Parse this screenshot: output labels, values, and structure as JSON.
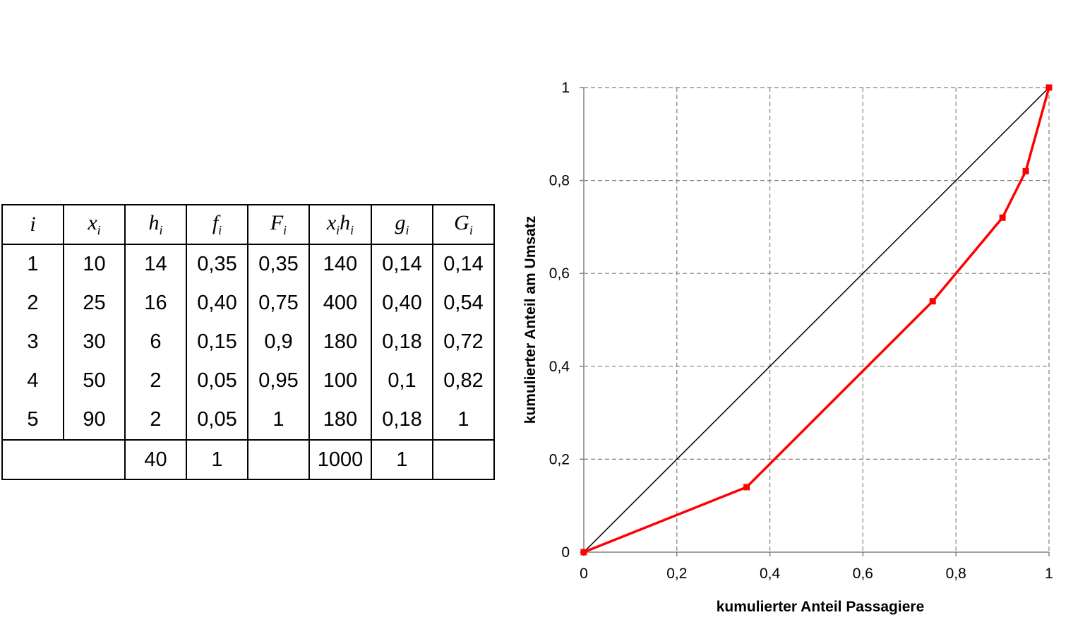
{
  "table": {
    "headers": [
      {
        "base": "i",
        "sub": ""
      },
      {
        "base": "x",
        "sub": "i"
      },
      {
        "base": "h",
        "sub": "i"
      },
      {
        "base": "f",
        "sub": "i"
      },
      {
        "base": "F",
        "sub": "i"
      },
      {
        "base": "x",
        "sub": "i",
        "base2": "h",
        "sub2": "i"
      },
      {
        "base": "g",
        "sub": "i"
      },
      {
        "base": "G",
        "sub": "i"
      }
    ],
    "rows": [
      [
        "1",
        "10",
        "14",
        "0,35",
        "0,35",
        "140",
        "0,14",
        "0,14"
      ],
      [
        "2",
        "25",
        "16",
        "0,40",
        "0,75",
        "400",
        "0,40",
        "0,54"
      ],
      [
        "3",
        "30",
        "6",
        "0,15",
        "0,9",
        "180",
        "0,18",
        "0,72"
      ],
      [
        "4",
        "50",
        "2",
        "0,05",
        "0,95",
        "100",
        "0,1",
        "0,82"
      ],
      [
        "5",
        "90",
        "2",
        "0,05",
        "1",
        "180",
        "0,18",
        "1"
      ]
    ],
    "totals": {
      "h": "40",
      "f": "1",
      "xh": "1000",
      "g": "1"
    }
  },
  "chart_data": {
    "type": "line",
    "xlabel": "kumulierter Anteil Passagiere",
    "ylabel": "kumulierter Anteil am Umsatz",
    "xlim": [
      0,
      1
    ],
    "ylim": [
      0,
      1
    ],
    "x_ticks": [
      0,
      0.2,
      0.4,
      0.6,
      0.8,
      1
    ],
    "y_ticks": [
      0,
      0.2,
      0.4,
      0.6,
      0.8,
      1
    ],
    "x_tick_labels": [
      "0",
      "0,2",
      "0,4",
      "0,6",
      "0,8",
      "1"
    ],
    "y_tick_labels": [
      "0",
      "0,2",
      "0,4",
      "0,6",
      "0,8",
      "1"
    ],
    "grid": true,
    "legend": "none",
    "series": [
      {
        "x": [
          0,
          0.35,
          0.75,
          0.9,
          0.95,
          1
        ],
        "y": [
          0,
          0.14,
          0.54,
          0.72,
          0.82,
          1
        ],
        "color": "#ff0000",
        "marker": "square"
      },
      {
        "x": [
          0,
          1
        ],
        "y": [
          0,
          1
        ],
        "color": "#000000",
        "marker": "none"
      }
    ]
  }
}
